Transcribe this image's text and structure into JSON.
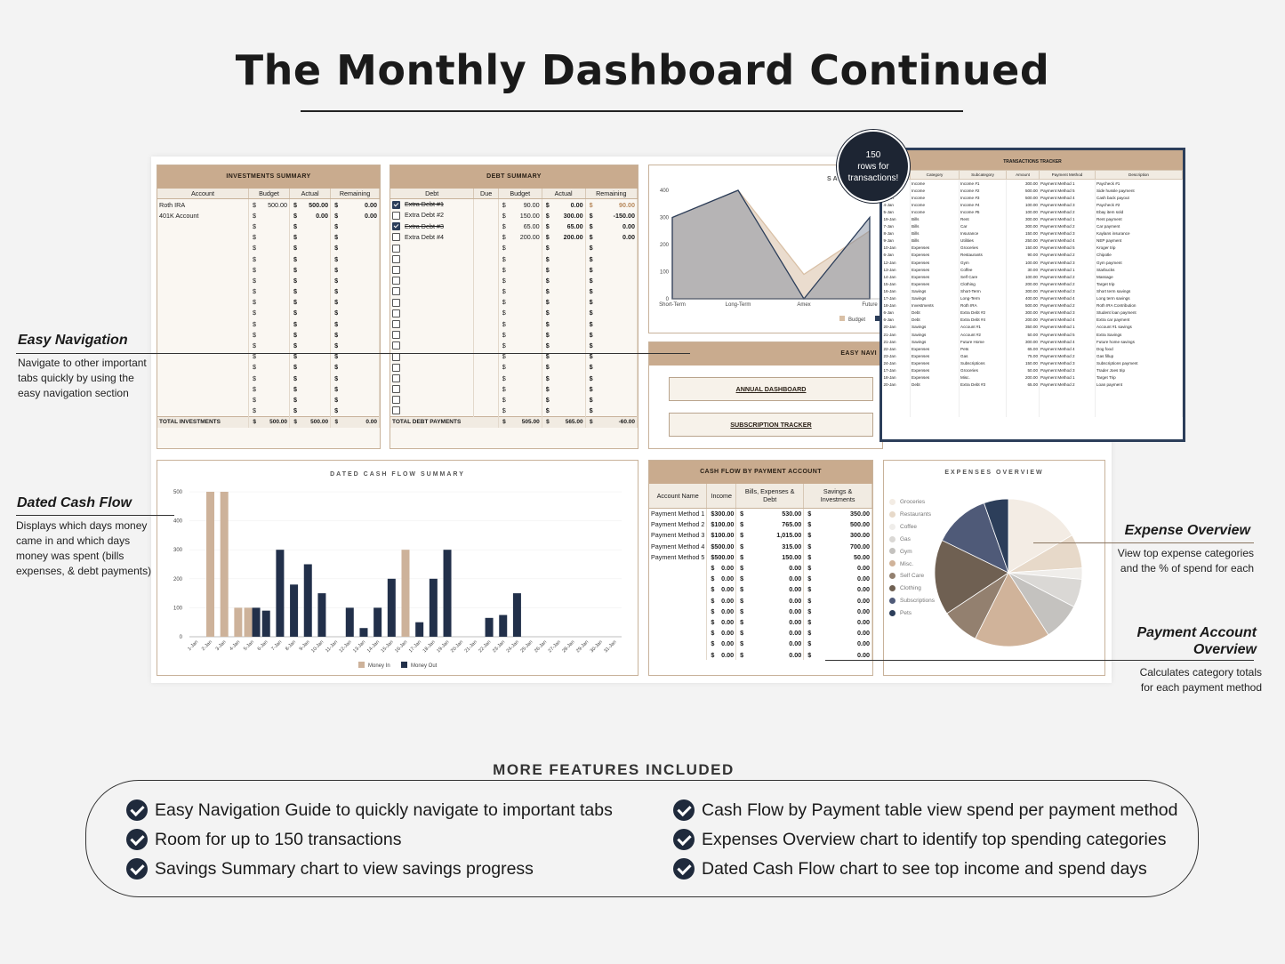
{
  "title": "The Monthly Dashboard Continued",
  "investments": {
    "header": "INVESTMENTS SUMMARY",
    "columns": [
      "Account",
      "Budget",
      "Actual",
      "Remaining"
    ],
    "rows": [
      {
        "account": "Roth IRA",
        "budget": "500.00",
        "actual": "500.00",
        "remaining": "0.00"
      },
      {
        "account": "401K Account",
        "budget": "",
        "actual": "0.00",
        "remaining": "0.00"
      }
    ],
    "total": {
      "label": "TOTAL INVESTMENTS",
      "budget": "500.00",
      "actual": "500.00",
      "remaining": "0.00"
    }
  },
  "debt": {
    "header": "DEBT SUMMARY",
    "columns": [
      "Debt",
      "Due",
      "Budget",
      "Actual",
      "Remaining"
    ],
    "rows": [
      {
        "debt": "Extra Debt #1",
        "checked": true,
        "budget": "90.00",
        "actual": "0.00",
        "remaining": "90.00"
      },
      {
        "debt": "Extra Debt #2",
        "checked": false,
        "budget": "150.00",
        "actual": "300.00",
        "remaining": "-150.00"
      },
      {
        "debt": "Extra Debt #3",
        "checked": true,
        "budget": "65.00",
        "actual": "65.00",
        "remaining": "0.00"
      },
      {
        "debt": "Extra Debt #4",
        "checked": false,
        "budget": "200.00",
        "actual": "200.00",
        "remaining": "0.00"
      }
    ],
    "total": {
      "label": "TOTAL DEBT PAYMENTS",
      "budget": "505.00",
      "actual": "565.00",
      "remaining": "-60.00"
    }
  },
  "savings_chart": {
    "title": "SA",
    "chart_data": {
      "type": "area",
      "categories": [
        "Short-Term",
        "Long-Term",
        "Amex",
        "Future"
      ],
      "ylim": [
        0,
        400
      ],
      "yticks": [
        0,
        100,
        200,
        300,
        400
      ],
      "series": [
        {
          "name": "Budget",
          "values": [
            300,
            400,
            90,
            250
          ],
          "color": "#d9c0a6"
        },
        {
          "name": "",
          "values": [
            300,
            400,
            0,
            300
          ],
          "color": "#2c3e5a"
        }
      ]
    }
  },
  "easy_nav": {
    "header": "EASY NAVI",
    "buttons": [
      "ANNUAL DASHBOARD",
      "SUBSCRIPTION TRACKER"
    ]
  },
  "badge": {
    "line1": "150",
    "line2": "rows for",
    "line3": "transactions!"
  },
  "tracker": {
    "header": "TRANSACTIONS TRACKER",
    "columns": [
      "Category",
      "Subcategory",
      "Amount",
      "Payment Method",
      "Description"
    ],
    "rows": [
      [
        "Income",
        "Income #1",
        "300.00",
        "Payment Method 1",
        "Paycheck #1"
      ],
      [
        "Income",
        "Income #2",
        "500.00",
        "Payment Method 5",
        "Side hussle payment"
      ],
      [
        "Income",
        "Income #3",
        "500.00",
        "Payment Method 4",
        "Cash back payout"
      ],
      [
        "Income",
        "Income #4",
        "100.00",
        "Payment Method 3",
        "Paycheck #2"
      ],
      [
        "Income",
        "Income #5",
        "100.00",
        "Payment Method 2",
        "Ebay item sold"
      ],
      [
        "Bills",
        "Rent",
        "300.00",
        "Payment Method 1",
        "Rent payment"
      ],
      [
        "Bills",
        "Car",
        "300.00",
        "Payment Method 2",
        "Car payment"
      ],
      [
        "Bills",
        "Insurance",
        "150.00",
        "Payment Method 3",
        "Kaylans insurance"
      ],
      [
        "Bills",
        "Utilities",
        "250.00",
        "Payment Method 4",
        "NEP payment"
      ],
      [
        "Expenses",
        "Groceries",
        "150.00",
        "Payment Method 5",
        "Kroger trip"
      ],
      [
        "Expenses",
        "Restaurants",
        "90.00",
        "Payment Method 2",
        "Chipotle"
      ],
      [
        "Expenses",
        "Gym",
        "100.00",
        "Payment Method 3",
        "Gym payment"
      ],
      [
        "Expenses",
        "Coffee",
        "30.00",
        "Payment Method 1",
        "Starbucks"
      ],
      [
        "Expenses",
        "Self Care",
        "100.00",
        "Payment Method 2",
        "Massage"
      ],
      [
        "Expenses",
        "Clothing",
        "200.00",
        "Payment Method 2",
        "Target trip"
      ],
      [
        "Savings",
        "Short-Term",
        "300.00",
        "Payment Method 3",
        "Short term savings"
      ],
      [
        "Savings",
        "Long-Term",
        "400.00",
        "Payment Method 4",
        "Long term savings"
      ],
      [
        "Investments",
        "Roth IRA",
        "500.00",
        "Payment Method 2",
        "Roth IRA Contribution"
      ],
      [
        "Debt",
        "Extra Debt #2",
        "300.00",
        "Payment Method 3",
        "Student loan payment"
      ],
      [
        "Debt",
        "Extra Debt #4",
        "200.00",
        "Payment Method 4",
        "Extra car payment"
      ],
      [
        "Savings",
        "Account #1",
        "350.00",
        "Payment Method 1",
        "Account #1 savings"
      ],
      [
        "Savings",
        "Account #2",
        "50.00",
        "Payment Method 5",
        "Extra Savings"
      ],
      [
        "Savings",
        "Future Home",
        "300.00",
        "Payment Method 4",
        "Future home savings"
      ],
      [
        "Expenses",
        "Pets",
        "65.00",
        "Payment Method 4",
        "Dog food"
      ],
      [
        "Expenses",
        "Gas",
        "75.00",
        "Payment Method 2",
        "Gas fillup"
      ],
      [
        "Expenses",
        "Subscriptions",
        "150.00",
        "Payment Method 3",
        "Subscriptions payment"
      ],
      [
        "Expenses",
        "Groceries",
        "50.00",
        "Payment Method 3",
        "Trader Joes trip"
      ],
      [
        "Expenses",
        "Misc.",
        "200.00",
        "Payment Method 1",
        "Target Trip"
      ],
      [
        "Debt",
        "Extra Debt #3",
        "65.00",
        "Payment Method 2",
        "Loan payment"
      ]
    ],
    "dates": [
      "1-Jan",
      "2-Jan",
      "3-Jan",
      "4-Jan",
      "5-Jan",
      "19-Jan",
      "7-Jan",
      "8-Jan",
      "9-Jan",
      "10-Jan",
      "6-Jan",
      "12-Jan",
      "13-Jan",
      "14-Jan",
      "15-Jan",
      "16-Jan",
      "17-Jan",
      "18-Jan",
      "6-Jan",
      "6-Jan",
      "20-Jan",
      "21-Jan",
      "21-Jan",
      "22-Jan",
      "23-Jan",
      "24-Jan",
      "17-Jan",
      "18-Jan",
      "20-Jan"
    ]
  },
  "cashflow_chart": {
    "title": "DATED CASH FLOW SUMMARY",
    "chart_data": {
      "type": "bar",
      "x": [
        "1-Jan",
        "2-Jan",
        "3-Jan",
        "4-Jan",
        "5-Jan",
        "6-Jan",
        "7-Jan",
        "8-Jan",
        "9-Jan",
        "10-Jan",
        "11-Jan",
        "12-Jan",
        "13-Jan",
        "14-Jan",
        "15-Jan",
        "16-Jan",
        "17-Jan",
        "18-Jan",
        "19-Jan",
        "20-Jan",
        "21-Jan",
        "22-Jan",
        "23-Jan",
        "24-Jan",
        "25-Jan",
        "26-Jan",
        "27-Jan",
        "28-Jan",
        "29-Jan",
        "30-Jan",
        "31-Jan"
      ],
      "ylim": [
        0,
        500
      ],
      "yticks": [
        0,
        100,
        200,
        300,
        400,
        500
      ],
      "series": [
        {
          "name": "Money In",
          "color": "#cdb29a",
          "values": [
            0,
            500,
            500,
            100,
            100,
            0,
            0,
            0,
            0,
            0,
            0,
            0,
            0,
            0,
            0,
            300,
            0,
            0,
            0,
            0,
            0,
            0,
            0,
            0,
            0,
            0,
            0,
            0,
            0,
            0,
            0
          ]
        },
        {
          "name": "Money Out",
          "color": "#22304a",
          "values": [
            0,
            0,
            0,
            0,
            100,
            90,
            300,
            180,
            250,
            150,
            0,
            100,
            30,
            100,
            200,
            0,
            50,
            200,
            300,
            0,
            0,
            65,
            75,
            150,
            0,
            0,
            0,
            0,
            0,
            0,
            0
          ]
        }
      ]
    }
  },
  "payment_account": {
    "header": "CASH FLOW BY PAYMENT ACCOUNT",
    "columns": [
      "Account Name",
      "Income",
      "Bills, Expenses & Debt",
      "Savings & Investments"
    ],
    "rows": [
      {
        "name": "Payment Method 1",
        "income": "300.00",
        "bills": "530.00",
        "savings": "350.00"
      },
      {
        "name": "Payment Method 2",
        "income": "100.00",
        "bills": "765.00",
        "savings": "500.00"
      },
      {
        "name": "Payment Method 3",
        "income": "100.00",
        "bills": "1,015.00",
        "savings": "300.00"
      },
      {
        "name": "Payment Method 4",
        "income": "500.00",
        "bills": "315.00",
        "savings": "700.00"
      },
      {
        "name": "Payment Method 5",
        "income": "500.00",
        "bills": "150.00",
        "savings": "50.00"
      }
    ],
    "empty_value": "0.00"
  },
  "expenses_chart": {
    "title": "EXPENSES OVERVIEW",
    "chart_data": {
      "type": "pie",
      "categories": [
        "Groceries",
        "Restaurants",
        "Coffee",
        "Gas",
        "Gym",
        "Misc.",
        "Self Care",
        "Clothing",
        "Subscriptions",
        "Pets"
      ],
      "values": [
        200,
        90,
        30,
        75,
        100,
        200,
        100,
        200,
        150,
        65
      ],
      "colors": [
        "#f3ece4",
        "#e7d9c9",
        "#efedea",
        "#dad8d5",
        "#c4c2bf",
        "#d0b39a",
        "#93806f",
        "#6f6052",
        "#4f5a78",
        "#2c3e5a"
      ]
    }
  },
  "callouts": {
    "easy_navigation": {
      "title": "Easy Navigation",
      "text": [
        "Navigate to other important",
        "tabs quickly by using the",
        "easy navigation section"
      ]
    },
    "dated_cash_flow": {
      "title": "Dated Cash Flow",
      "text": [
        "Displays which days money",
        "came in and which days",
        "money was spent (bills",
        "expenses, & debt payments)"
      ]
    },
    "expense_overview": {
      "title": "Expense Overview",
      "text": [
        "View top expense categories",
        "and the % of spend for each"
      ]
    },
    "payment_account": {
      "title1": "Payment Account",
      "title2": "Overview",
      "text": [
        "Calculates  category totals",
        "for each payment method"
      ]
    }
  },
  "features": {
    "title": "MORE FEATURES INCLUDED",
    "left": [
      "Easy Navigation Guide to quickly navigate to important tabs",
      "Room for up to 150 transactions",
      "Savings Summary chart to view savings progress"
    ],
    "right": [
      "Cash Flow by Payment table view spend per payment method",
      "Expenses Overview chart to identify top spending categories",
      "Dated Cash Flow chart to see top income and spend days"
    ]
  }
}
